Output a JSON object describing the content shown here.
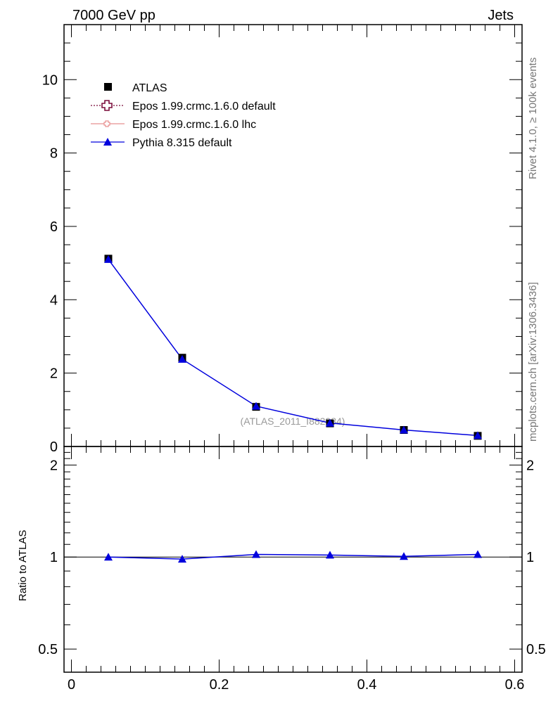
{
  "header": {
    "left": "7000 GeV pp",
    "right": "Jets"
  },
  "side_labels": {
    "rivet": "Rivet 4.1.0, ≥ 100k events",
    "site": "mcplots.cern.ch [arXiv:1306.3436]"
  },
  "watermark": "(ATLAS_2011_I882984)",
  "ratio_ylabel": "Ratio to ATLAS",
  "colors": {
    "atlas": "#000000",
    "epos_default": "#7a0c3a",
    "epos_lhc": "#e89090",
    "pythia": "#0000dd"
  },
  "legend": [
    {
      "label": "ATLAS",
      "marker": "square",
      "color": "#000000"
    },
    {
      "label": "Epos 1.99.crmc.1.6.0 default",
      "marker": "open-cross",
      "color": "#7a0c3a",
      "line": "dotted"
    },
    {
      "label": "Epos 1.99.crmc.1.6.0 lhc",
      "marker": "small-cross",
      "color": "#e89090",
      "line": "solid"
    },
    {
      "label": "Pythia 8.315 default",
      "marker": "triangle",
      "color": "#0000dd",
      "line": "solid"
    }
  ],
  "chart_data": [
    {
      "type": "line",
      "panel": "main",
      "x": [
        0.05,
        0.15,
        0.25,
        0.35,
        0.45,
        0.55
      ],
      "xlim": [
        -0.01,
        0.61
      ],
      "ylim": [
        0,
        11.5
      ],
      "yticks": [
        0,
        2,
        4,
        6,
        8,
        10
      ],
      "ytick_labels": [
        "0",
        "2",
        "4",
        "6",
        "8",
        "10"
      ],
      "series": [
        {
          "name": "ATLAS",
          "values": [
            5.12,
            2.42,
            1.08,
            0.63,
            0.45,
            0.29
          ]
        },
        {
          "name": "Pythia 8.315 default",
          "values": [
            5.1,
            2.38,
            1.1,
            0.64,
            0.45,
            0.3
          ]
        }
      ]
    },
    {
      "type": "line",
      "panel": "ratio",
      "x": [
        0.05,
        0.15,
        0.25,
        0.35,
        0.45,
        0.55
      ],
      "xlim": [
        -0.01,
        0.61
      ],
      "ylim": [
        0.42,
        2.3
      ],
      "scale": "log",
      "yticks": [
        0.5,
        1,
        2
      ],
      "ytick_labels": [
        "0.5",
        "1",
        "2"
      ],
      "xticks": [
        0,
        0.2,
        0.4,
        0.6
      ],
      "xtick_labels": [
        "0",
        "0.2",
        "0.4",
        "0.6"
      ],
      "series": [
        {
          "name": "Pythia 8.315 default",
          "values": [
            1.0,
            0.985,
            1.02,
            1.015,
            1.005,
            1.02
          ],
          "errors": [
            0.004,
            0.004,
            0.01,
            0.02,
            0.02,
            0.012
          ]
        }
      ]
    }
  ]
}
